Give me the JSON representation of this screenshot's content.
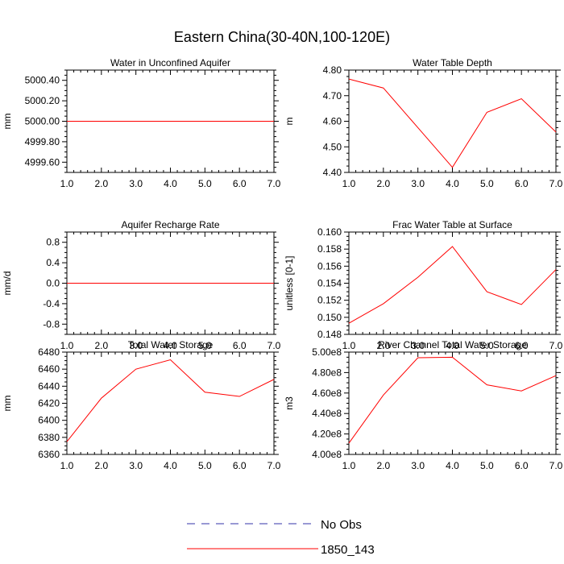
{
  "figure": {
    "title": "Eastern China(30-40N,100-120E)"
  },
  "legend": {
    "items": [
      {
        "label": "No Obs",
        "color": "#3333aa",
        "style": "dashed"
      },
      {
        "label": "1850_143",
        "color": "#ff0000",
        "style": "solid"
      }
    ]
  },
  "chart_data": [
    {
      "type": "line",
      "title": "Water in Unconfined Aquifer",
      "ylabel": "mm",
      "xlim": [
        1.0,
        7.0
      ],
      "ylim": [
        4999.5,
        5000.5
      ],
      "xticks": [
        "1.0",
        "2.0",
        "3.0",
        "4.0",
        "5.0",
        "6.0",
        "7.0"
      ],
      "yticks": [
        {
          "value": 4999.6,
          "label": "4999.60"
        },
        {
          "value": 4999.8,
          "label": "4999.80"
        },
        {
          "value": 5000.0,
          "label": "5000.00"
        },
        {
          "value": 5000.2,
          "label": "5000.20"
        },
        {
          "value": 5000.4,
          "label": "5000.40"
        }
      ],
      "x": [
        1,
        2,
        3,
        4,
        5,
        6,
        7
      ],
      "series": [
        {
          "values": [
            5000.0,
            5000.0,
            5000.0,
            5000.0,
            5000.0,
            5000.0,
            5000.0
          ],
          "color": "#ff0000"
        }
      ]
    },
    {
      "type": "line",
      "title": "Water Table Depth",
      "ylabel": "m",
      "xlim": [
        1.0,
        7.0
      ],
      "ylim": [
        4.4,
        4.8
      ],
      "xticks": [
        "1.0",
        "2.0",
        "3.0",
        "4.0",
        "5.0",
        "6.0",
        "7.0"
      ],
      "yticks": [
        {
          "value": 4.4,
          "label": "4.40"
        },
        {
          "value": 4.5,
          "label": "4.50"
        },
        {
          "value": 4.6,
          "label": "4.60"
        },
        {
          "value": 4.7,
          "label": "4.70"
        },
        {
          "value": 4.8,
          "label": "4.80"
        }
      ],
      "x": [
        1,
        2,
        3,
        4,
        5,
        6,
        7
      ],
      "series": [
        {
          "values": [
            4.765,
            4.73,
            4.575,
            4.42,
            4.635,
            4.688,
            4.558
          ],
          "color": "#ff0000"
        }
      ]
    },
    {
      "type": "line",
      "title": "Aquifer Recharge Rate",
      "ylabel": "mm/d",
      "xlim": [
        1.0,
        7.0
      ],
      "ylim": [
        -1.0,
        1.0
      ],
      "xticks": [
        "1.0",
        "2.0",
        "3.0",
        "4.0",
        "5.0",
        "6.0",
        "7.0"
      ],
      "yticks": [
        {
          "value": -0.8,
          "label": "-0.8"
        },
        {
          "value": -0.4,
          "label": "-0.4"
        },
        {
          "value": 0.0,
          "label": "0.0"
        },
        {
          "value": 0.4,
          "label": "0.4"
        },
        {
          "value": 0.8,
          "label": "0.8"
        }
      ],
      "x": [
        1,
        2,
        3,
        4,
        5,
        6,
        7
      ],
      "series": [
        {
          "values": [
            0,
            0,
            0,
            0,
            0,
            0,
            0
          ],
          "color": "#ff0000"
        }
      ]
    },
    {
      "type": "line",
      "title": "Frac Water Table at Surface",
      "ylabel": "unitless [0-1]",
      "xlim": [
        1.0,
        7.0
      ],
      "ylim": [
        0.148,
        0.16
      ],
      "xticks": [
        "1.0",
        "2.0",
        "3.0",
        "4.0",
        "5.0",
        "6.0",
        "7.0"
      ],
      "yticks": [
        {
          "value": 0.148,
          "label": "0.148"
        },
        {
          "value": 0.15,
          "label": "0.150"
        },
        {
          "value": 0.152,
          "label": "0.152"
        },
        {
          "value": 0.154,
          "label": "0.154"
        },
        {
          "value": 0.156,
          "label": "0.156"
        },
        {
          "value": 0.158,
          "label": "0.158"
        },
        {
          "value": 0.16,
          "label": "0.160"
        }
      ],
      "x": [
        1,
        2,
        3,
        4,
        5,
        6,
        7
      ],
      "series": [
        {
          "values": [
            0.1493,
            0.1516,
            0.1547,
            0.1583,
            0.153,
            0.1515,
            0.1556
          ],
          "color": "#ff0000"
        }
      ]
    },
    {
      "type": "line",
      "title": "Total Water Storage",
      "ylabel": "mm",
      "xlim": [
        1.0,
        7.0
      ],
      "ylim": [
        6360,
        6480
      ],
      "xticks": [
        "1.0",
        "2.0",
        "3.0",
        "4.0",
        "5.0",
        "6.0",
        "7.0"
      ],
      "yticks": [
        {
          "value": 6360,
          "label": "6360"
        },
        {
          "value": 6380,
          "label": "6380"
        },
        {
          "value": 6400,
          "label": "6400"
        },
        {
          "value": 6420,
          "label": "6420"
        },
        {
          "value": 6440,
          "label": "6440"
        },
        {
          "value": 6460,
          "label": "6460"
        },
        {
          "value": 6480,
          "label": "6480"
        }
      ],
      "x": [
        1,
        2,
        3,
        4,
        5,
        6,
        7
      ],
      "series": [
        {
          "values": [
            6375,
            6426,
            6460,
            6471,
            6433,
            6428,
            6448
          ],
          "color": "#ff0000"
        }
      ]
    },
    {
      "type": "line",
      "title": "River Channel Total Water Storage",
      "ylabel": "m3",
      "xlim": [
        1.0,
        7.0
      ],
      "ylim": [
        400000000.0,
        500000000.0
      ],
      "xticks": [
        "1.0",
        "2.0",
        "3.0",
        "4.0",
        "5.0",
        "6.0",
        "7.0"
      ],
      "yticks": [
        {
          "value": 400000000.0,
          "label": "4.00e8"
        },
        {
          "value": 420000000.0,
          "label": "4.20e8"
        },
        {
          "value": 440000000.0,
          "label": "4.40e8"
        },
        {
          "value": 460000000.0,
          "label": "4.60e8"
        },
        {
          "value": 480000000.0,
          "label": "4.80e8"
        },
        {
          "value": 500000000.0,
          "label": "5.00e8"
        }
      ],
      "x": [
        1,
        2,
        3,
        4,
        5,
        6,
        7
      ],
      "series": [
        {
          "values": [
            411000000.0,
            458000000.0,
            494500000.0,
            495000000.0,
            468000000.0,
            462000000.0,
            477000000.0
          ],
          "color": "#ff0000"
        }
      ]
    }
  ]
}
